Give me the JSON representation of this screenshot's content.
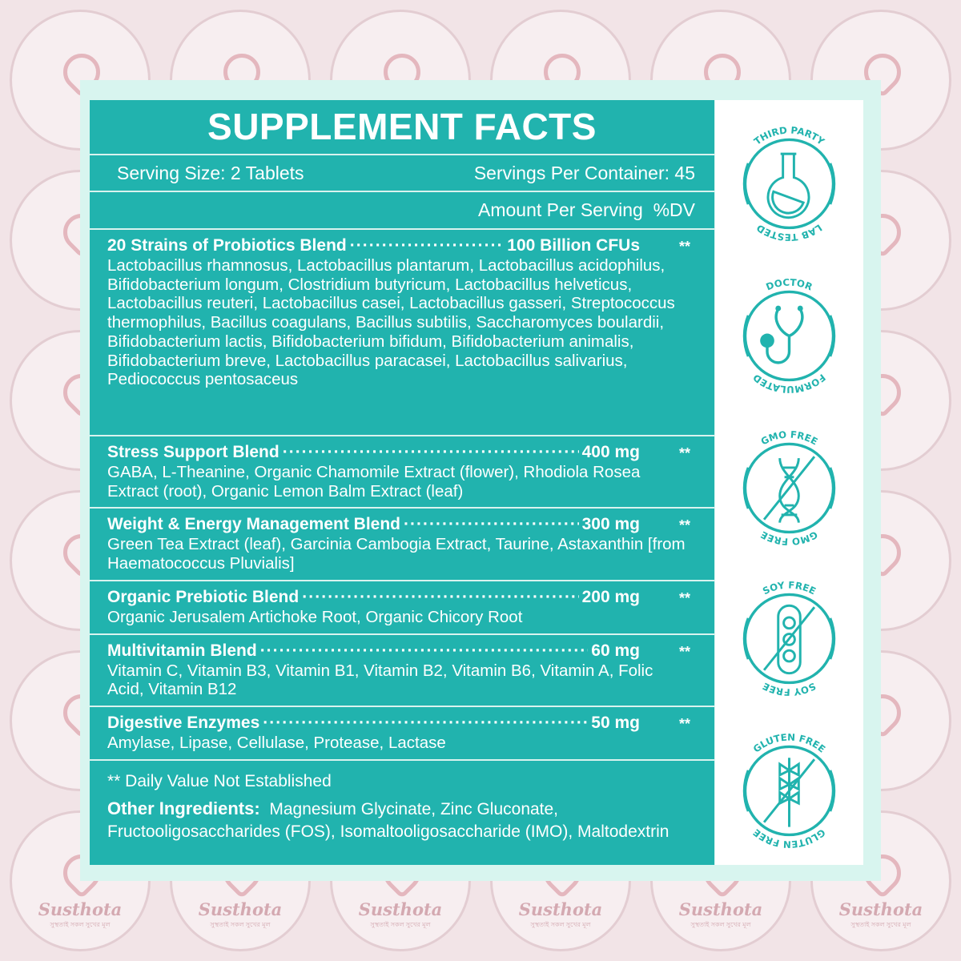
{
  "watermark": {
    "brand": "Susthota",
    "tagline": "সুস্থতাই সকল সুখের মূল"
  },
  "title": "SUPPLEMENT FACTS",
  "serving_size": "Serving Size: 2 Tablets",
  "servings_per_container": "Servings Per Container: 45",
  "amount_header": "Amount Per Serving  %DV",
  "blends": [
    {
      "name": "20 Strains of Probiotics Blend",
      "amount": "100 Billion CFUs",
      "dv": "**",
      "ingredients": "Lactobacillus rhamnosus, Lactobacillus plantarum, Lactobacillus acidophilus, Bifidobacterium longum, Clostridium butyricum, Lactobacillus helveticus, Lactobacillus reuteri, Lactobacillus casei, Lactobacillus gasseri, Streptococcus thermophilus, Bacillus coagulans, Bacillus subtilis, Saccharomyces boulardii, Bifidobacterium lactis, Bifidobacterium bifidum, Bifidobacterium animalis, Bifidobacterium breve, Lactobacillus paracasei, Lactobacillus salivarius, Pediococcus pentosaceus"
    },
    {
      "name": "Stress Support Blend",
      "amount": "400 mg",
      "dv": "**",
      "ingredients": "GABA, L-Theanine, Organic Chamomile Extract (flower), Rhodiola Rosea Extract (root), Organic Lemon Balm Extract (leaf)"
    },
    {
      "name": "Weight & Energy Management Blend",
      "amount": "300 mg",
      "dv": "**",
      "ingredients": "Green Tea Extract (leaf), Garcinia Cambogia Extract, Taurine, Astaxanthin [from Haematococcus Pluvialis]"
    },
    {
      "name": "Organic Prebiotic Blend",
      "amount": "200 mg",
      "dv": "**",
      "ingredients": "Organic Jerusalem Artichoke Root, Organic Chicory Root"
    },
    {
      "name": "Multivitamin Blend",
      "amount": "60 mg",
      "dv": "**",
      "ingredients": "Vitamin C, Vitamin B3, Vitamin B1, Vitamin B2, Vitamin B6, Vitamin A, Folic Acid, Vitamin B12"
    },
    {
      "name": "Digestive Enzymes",
      "amount": "50 mg",
      "dv": "**",
      "ingredients": "Amylase, Lipase, Cellulase, Protease, Lactase"
    }
  ],
  "dv_note": "** Daily Value Not Established",
  "other_label": "Other Ingredients:",
  "other_ingredients": "Magnesium Glycinate, Zinc Gluconate, Fructooligosaccharides (FOS), Isomaltooligosaccharide (IMO), Maltodextrin",
  "badges": [
    {
      "top": "THIRD PARTY",
      "bottom": "LAB TESTED",
      "icon": "flask-icon"
    },
    {
      "top": "DOCTOR",
      "bottom": "FORMULATED",
      "icon": "stethoscope-icon"
    },
    {
      "top": "GMO FREE",
      "bottom": "GMO FREE",
      "icon": "dna-icon"
    },
    {
      "top": "SOY FREE",
      "bottom": "SOY FREE",
      "icon": "soybean-icon"
    },
    {
      "top": "GLUTEN FREE",
      "bottom": "GLUTEN FREE",
      "icon": "wheat-icon"
    }
  ],
  "colors": {
    "teal": "#21b3ae",
    "frame": "#d8f5ef",
    "background": "#f2e4e7"
  }
}
